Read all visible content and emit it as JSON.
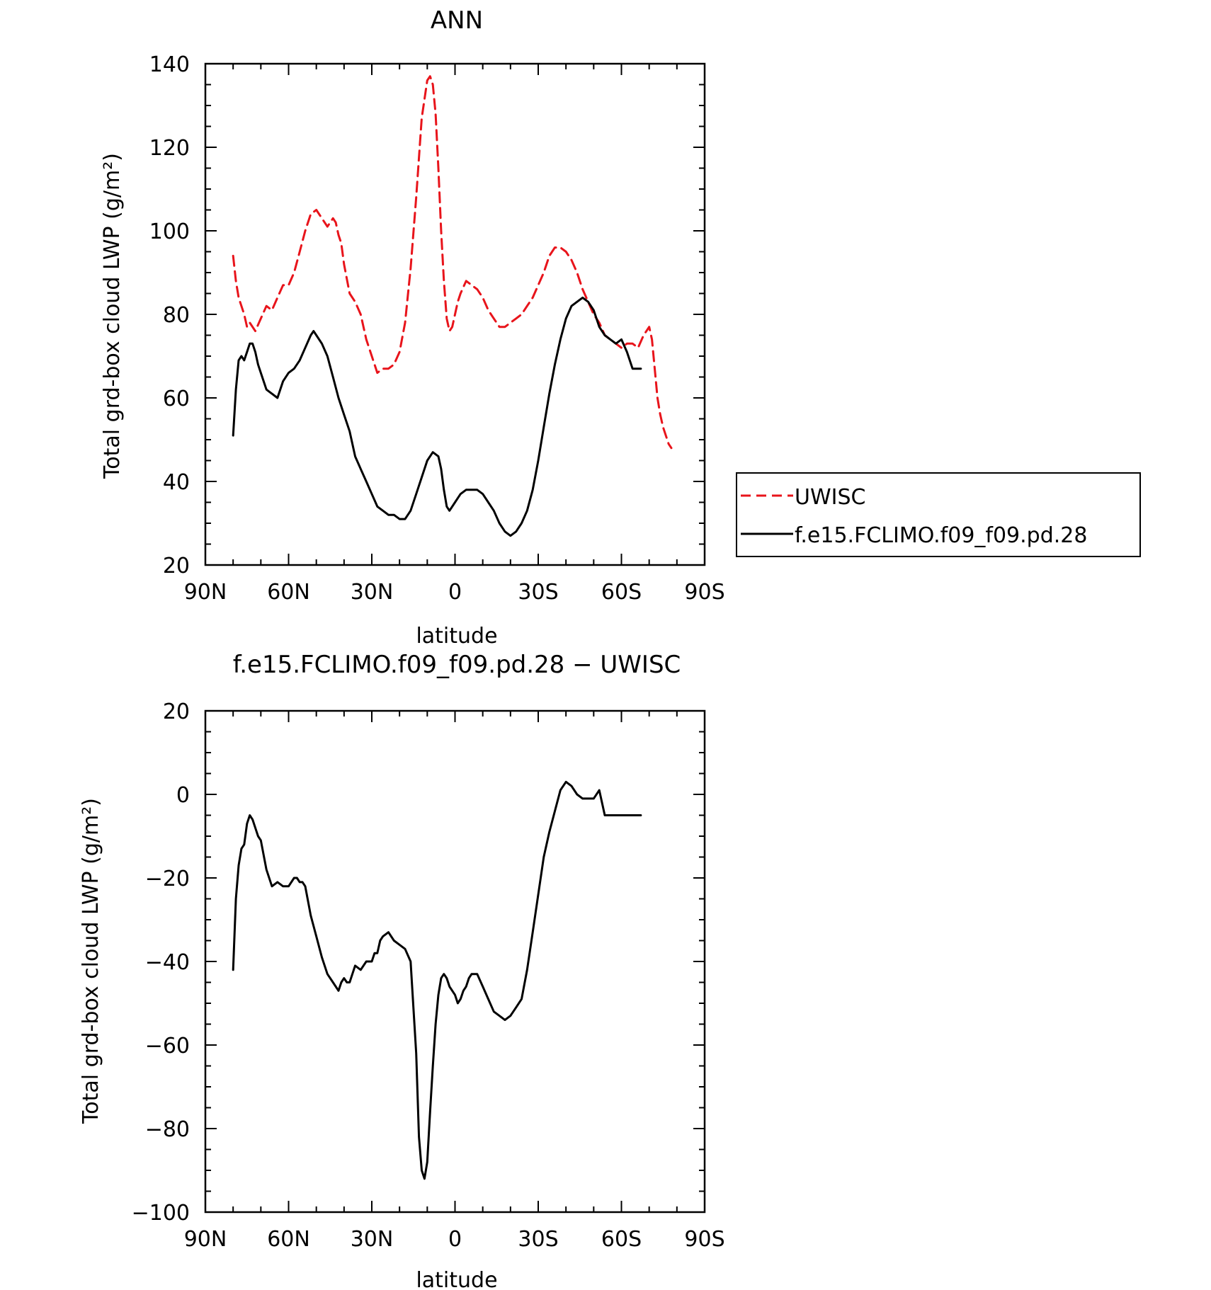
{
  "chart_data": [
    {
      "type": "line",
      "title": "ANN",
      "xlabel": "latitude",
      "ylabel": "Total grd-box cloud LWP (g/m²)",
      "x_ticks": [
        "90N",
        "60N",
        "30N",
        "0",
        "30S",
        "60S",
        "90S"
      ],
      "y_ticks": [
        "20",
        "40",
        "60",
        "80",
        "100",
        "120",
        "140"
      ],
      "xlim": [
        90,
        -90
      ],
      "ylim": [
        20,
        140
      ],
      "legend": {
        "placement": "right-outside"
      },
      "series": [
        {
          "name": "UWISC",
          "color": "#e8141b",
          "dash": "dashed",
          "x": [
            80,
            79,
            78,
            76,
            75,
            74,
            72,
            70,
            68,
            66,
            64,
            62,
            60,
            58,
            56,
            54,
            52,
            50,
            48,
            46,
            44,
            43,
            42,
            41,
            40,
            38,
            36,
            34,
            32,
            30,
            28,
            26,
            24,
            22,
            20,
            18,
            16,
            14,
            12,
            10,
            9,
            8,
            7,
            6,
            5,
            4,
            3,
            2,
            1,
            0,
            -1,
            -2,
            -4,
            -6,
            -8,
            -10,
            -12,
            -14,
            -16,
            -18,
            -20,
            -22,
            -24,
            -26,
            -28,
            -30,
            -32,
            -34,
            -36,
            -38,
            -40,
            -42,
            -44,
            -46,
            -48,
            -50,
            -52,
            -54,
            -56,
            -58,
            -60,
            -62,
            -64,
            -66,
            -68,
            -70,
            -71,
            -72,
            -73,
            -74,
            -75,
            -77,
            -78
          ],
          "y": [
            94,
            88,
            84,
            80,
            77,
            78,
            76,
            79,
            82,
            81,
            84,
            87,
            87,
            90,
            95,
            100,
            104,
            105,
            103,
            101,
            103,
            102,
            99,
            97,
            92,
            85,
            83,
            80,
            74,
            70,
            66,
            67,
            67,
            68,
            71,
            78,
            91,
            108,
            127,
            136,
            137,
            135,
            128,
            115,
            100,
            88,
            79,
            76,
            77,
            80,
            83,
            85,
            88,
            87,
            86,
            84,
            81,
            79,
            77,
            77,
            78,
            79,
            80,
            82,
            84,
            87,
            90,
            94,
            96,
            96,
            95,
            93,
            90,
            86,
            83,
            80,
            78,
            75,
            74,
            73,
            72,
            73,
            73,
            72,
            75,
            77,
            74,
            67,
            60,
            56,
            53,
            49,
            48
          ]
        },
        {
          "name": "f.e15.FCLIMO.f09_f09.pd.28",
          "color": "#000000",
          "dash": "solid",
          "x": [
            80,
            79,
            78,
            77,
            76,
            75,
            74,
            73,
            72,
            71,
            70,
            68,
            66,
            64,
            62,
            60,
            58,
            56,
            54,
            52,
            51,
            50,
            48,
            46,
            44,
            42,
            40,
            38,
            36,
            34,
            32,
            30,
            28,
            26,
            24,
            22,
            20,
            18,
            16,
            14,
            12,
            10,
            8,
            6,
            5,
            4,
            3,
            2,
            1,
            0,
            -1,
            -2,
            -4,
            -6,
            -8,
            -10,
            -12,
            -14,
            -16,
            -18,
            -20,
            -22,
            -24,
            -26,
            -28,
            -30,
            -32,
            -34,
            -36,
            -38,
            -40,
            -42,
            -44,
            -46,
            -48,
            -50,
            -52,
            -54,
            -56,
            -58,
            -60,
            -62,
            -64,
            -65,
            -66,
            -67
          ],
          "y": [
            51,
            62,
            69,
            70,
            69,
            71,
            73,
            73,
            71,
            68,
            66,
            62,
            61,
            60,
            64,
            66,
            67,
            69,
            72,
            75,
            76,
            75,
            73,
            70,
            65,
            60,
            56,
            52,
            46,
            43,
            40,
            37,
            34,
            33,
            32,
            32,
            31,
            31,
            33,
            37,
            41,
            45,
            47,
            46,
            43,
            38,
            34,
            33,
            34,
            35,
            36,
            37,
            38,
            38,
            38,
            37,
            35,
            33,
            30,
            28,
            27,
            28,
            30,
            33,
            38,
            45,
            53,
            61,
            68,
            74,
            79,
            82,
            83,
            84,
            83,
            81,
            77,
            75,
            74,
            73,
            74,
            71,
            67,
            67,
            67,
            67
          ]
        }
      ]
    },
    {
      "type": "line",
      "title": "f.e15.FCLIMO.f09_f09.pd.28 − UWISC",
      "xlabel": "latitude",
      "ylabel": "Total grd-box cloud LWP (g/m²)",
      "x_ticks": [
        "90N",
        "60N",
        "30N",
        "0",
        "30S",
        "60S",
        "90S"
      ],
      "y_ticks": [
        "−100",
        "−80",
        "−60",
        "−40",
        "−20",
        "0",
        "20"
      ],
      "xlim": [
        90,
        -90
      ],
      "ylim": [
        -100,
        20
      ],
      "series": [
        {
          "color": "#000000",
          "dash": "solid",
          "x": [
            80,
            79,
            78,
            77,
            76,
            75,
            74,
            73,
            72,
            71,
            70,
            68,
            66,
            64,
            62,
            60,
            58,
            57,
            56,
            55,
            54,
            52,
            50,
            48,
            46,
            44,
            42,
            41,
            40,
            39,
            38,
            37,
            36,
            34,
            32,
            30,
            29,
            28,
            27,
            26,
            24,
            22,
            20,
            18,
            16,
            14,
            13,
            12,
            11,
            10,
            9,
            8,
            7,
            6,
            5,
            4,
            3,
            2,
            1,
            0,
            -1,
            -2,
            -3,
            -4,
            -5,
            -6,
            -8,
            -10,
            -12,
            -14,
            -16,
            -18,
            -20,
            -22,
            -24,
            -26,
            -28,
            -30,
            -32,
            -34,
            -36,
            -38,
            -40,
            -42,
            -44,
            -46,
            -48,
            -50,
            -52,
            -54,
            -56,
            -58,
            -60,
            -62,
            -64,
            -65,
            -66,
            -67
          ],
          "y": [
            -42,
            -25,
            -17,
            -13,
            -12,
            -7,
            -5,
            -6,
            -8,
            -10,
            -11,
            -18,
            -22,
            -21,
            -22,
            -22,
            -20,
            -20,
            -21,
            -21,
            -22,
            -29,
            -34,
            -39,
            -43,
            -45,
            -47,
            -45,
            -44,
            -45,
            -45,
            -43,
            -41,
            -42,
            -40,
            -40,
            -38,
            -38,
            -35,
            -34,
            -33,
            -35,
            -36,
            -37,
            -40,
            -62,
            -82,
            -90,
            -92,
            -88,
            -76,
            -65,
            -55,
            -48,
            -44,
            -43,
            -44,
            -46,
            -47,
            -48,
            -50,
            -49,
            -47,
            -46,
            -44,
            -43,
            -43,
            -46,
            -49,
            -52,
            -53,
            -54,
            -53,
            -51,
            -49,
            -42,
            -33,
            -24,
            -15,
            -9,
            -4,
            1,
            3,
            2,
            0,
            -1,
            -1,
            -1,
            1,
            -5,
            -5,
            -5,
            -5,
            -5,
            -5,
            -5,
            -5,
            -5
          ]
        }
      ]
    }
  ]
}
